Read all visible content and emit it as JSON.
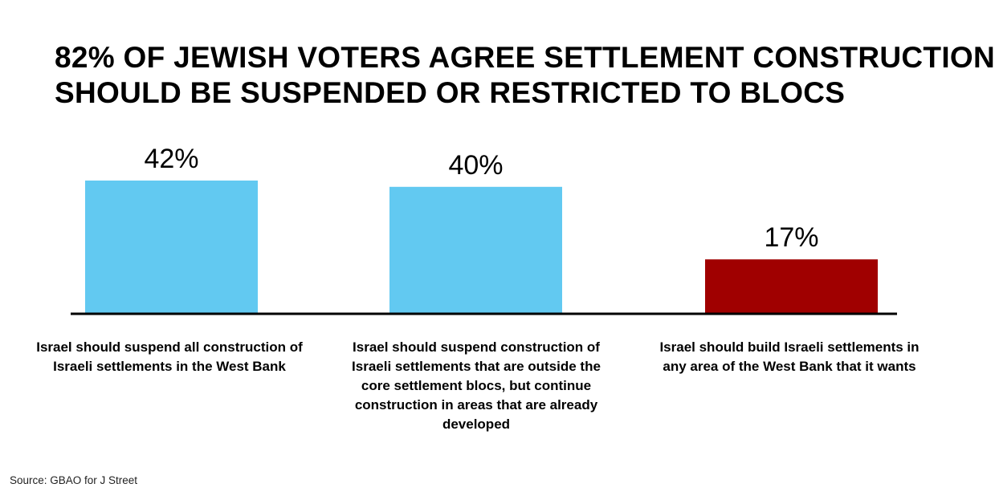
{
  "chart_data": {
    "type": "bar",
    "title_lines": [
      "82% OF JEWISH VOTERS AGREE SETTLEMENT CONSTRUCTION",
      "SHOULD BE SUSPENDED OR RESTRICTED TO BLOCS"
    ],
    "categories": [
      "Israel should suspend all construction of Israeli settlements in the West Bank",
      "Israel should suspend construction of Israeli settlements that are outside the core settlement blocs, but continue construction in areas that are already developed",
      "Israel should build Israeli settlements in any area of the West Bank that it wants"
    ],
    "values": [
      42,
      40,
      17
    ],
    "value_labels": [
      "42%",
      "40%",
      "17%"
    ],
    "colors": [
      "#62c9f1",
      "#62c9f1",
      "#a00000"
    ],
    "ylim": [
      0,
      50
    ],
    "grid": false,
    "legend": "none",
    "source": "Source: GBAO for J Street"
  }
}
